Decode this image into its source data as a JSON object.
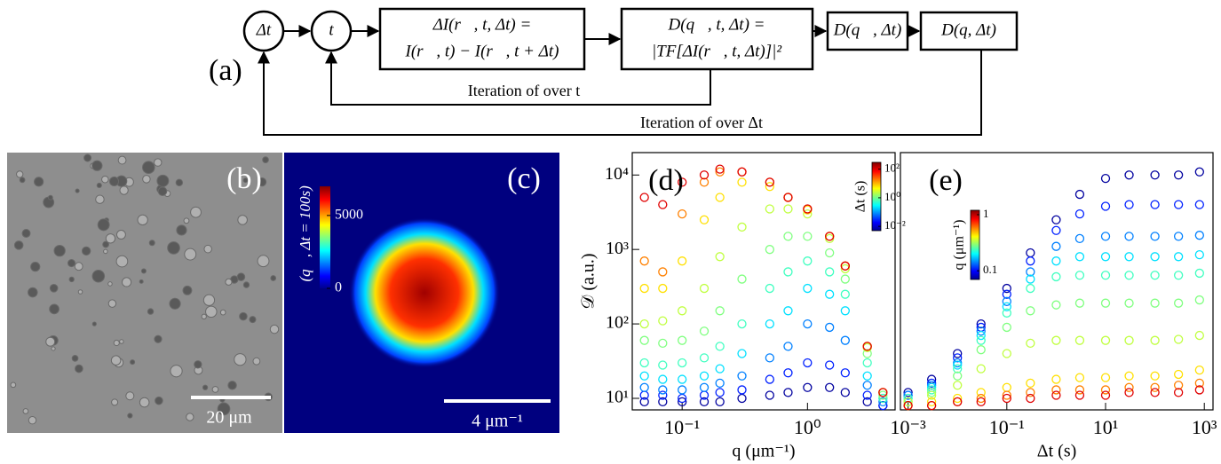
{
  "panel_a": {
    "label": "(a)",
    "nodes": [
      {
        "lines": [
          "Δt"
        ]
      },
      {
        "lines": [
          "t"
        ]
      },
      {
        "lines": [
          "ΔI(r⃗, t, Δt) =",
          "I(r⃗, t) − I(r⃗, t + Δt)"
        ]
      },
      {
        "lines": [
          "D(q⃗, t, Δt) =",
          "|TF[ΔI(r⃗, t, Δt)]|²"
        ]
      },
      {
        "lines": [
          "D(q⃗, Δt)"
        ]
      },
      {
        "lines": [
          "D(q, Δt)"
        ]
      }
    ],
    "loops": [
      "Iteration of over t",
      "Iteration of over Δt"
    ]
  },
  "panel_b": {
    "label": "(b)",
    "scale_bar": "20 μm"
  },
  "panel_c": {
    "label": "(c)",
    "colorbar_label": "𝒟(q⃗, Δt = 100s)",
    "colorbar_lim": [
      0,
      7000
    ],
    "colorbar_ticks": [
      0,
      5000
    ],
    "scale_bar": "4 μm⁻¹"
  },
  "chart_data": [
    {
      "type": "scatter",
      "label": "(d)",
      "xlabel": "q (μm⁻¹)",
      "ylabel": "𝒟 (a.u.)",
      "log_x": true,
      "log_y": true,
      "xlim": [
        0.04,
        5
      ],
      "ylim": [
        7,
        20000
      ],
      "xticks": [
        {
          "value": 0.1,
          "label": "10⁻¹"
        },
        {
          "value": 1,
          "label": "10⁰"
        }
      ],
      "yticks": [
        {
          "value": 10,
          "label": "10¹"
        },
        {
          "value": 100,
          "label": "10²"
        },
        {
          "value": 1000,
          "label": "10³"
        },
        {
          "value": 10000,
          "label": "10⁴"
        }
      ],
      "colorbar": {
        "label": "Δt (s)",
        "lim": [
          0.005,
          300
        ],
        "ticks": [
          {
            "value": 0.01,
            "label": "10⁻²"
          },
          {
            "value": 1,
            "label": "10⁰"
          },
          {
            "value": 100,
            "label": "10²"
          }
        ]
      },
      "x": [
        0.05,
        0.07,
        0.1,
        0.15,
        0.2,
        0.3,
        0.5,
        0.7,
        1,
        1.5,
        2,
        3,
        4
      ],
      "series": [
        {
          "color": "#00009f",
          "values": [
            9,
            9,
            9,
            9,
            9,
            10,
            11,
            12,
            14,
            14,
            12,
            9,
            8
          ]
        },
        {
          "color": "#0020ff",
          "values": [
            11,
            11,
            10,
            11,
            12,
            13,
            18,
            22,
            30,
            28,
            22,
            11,
            8
          ]
        },
        {
          "color": "#0080ff",
          "values": [
            14,
            13,
            13,
            14,
            16,
            20,
            35,
            50,
            100,
            90,
            60,
            15,
            9
          ]
        },
        {
          "color": "#00e0ff",
          "values": [
            20,
            18,
            18,
            20,
            25,
            40,
            100,
            150,
            300,
            250,
            150,
            20,
            10
          ]
        },
        {
          "color": "#40ffc0",
          "values": [
            30,
            28,
            30,
            35,
            50,
            100,
            300,
            500,
            700,
            500,
            250,
            30,
            10
          ]
        },
        {
          "color": "#80ff80",
          "values": [
            60,
            55,
            60,
            80,
            150,
            400,
            1000,
            1500,
            1500,
            900,
            400,
            40,
            11
          ]
        },
        {
          "color": "#c0ff40",
          "values": [
            100,
            110,
            150,
            300,
            800,
            2000,
            3500,
            3500,
            3000,
            1400,
            550,
            48,
            12
          ]
        },
        {
          "color": "#ffe000",
          "values": [
            300,
            300,
            700,
            2500,
            5000,
            8000,
            7000,
            5000,
            3400,
            1500,
            600,
            50,
            12
          ]
        },
        {
          "color": "#ff8000",
          "values": [
            700,
            500,
            3000,
            8000,
            11000,
            11000,
            8000,
            5000,
            3500,
            1500,
            600,
            50,
            12
          ]
        },
        {
          "color": "#e00000",
          "values": [
            5000,
            4000,
            8000,
            10000,
            12000,
            11000,
            8000,
            5000,
            3500,
            1500,
            600,
            50,
            12
          ]
        }
      ]
    },
    {
      "type": "scatter",
      "label": "(e)",
      "xlabel": "Δt (s)",
      "log_x": true,
      "log_y": true,
      "xlim": [
        0.0007,
        1500
      ],
      "ylim": [
        7,
        20000
      ],
      "xticks": [
        {
          "value": 0.001,
          "label": "10⁻³"
        },
        {
          "value": 0.1,
          "label": "10⁻¹"
        },
        {
          "value": 10,
          "label": "10¹"
        },
        {
          "value": 1000,
          "label": "10³"
        }
      ],
      "colorbar": {
        "label": "q (μm⁻¹)",
        "lim": [
          0.07,
          1.2
        ],
        "ticks": [
          0.1,
          1
        ]
      },
      "x": [
        0.001,
        0.003,
        0.01,
        0.03,
        0.1,
        0.3,
        1,
        3,
        10,
        30,
        100,
        300,
        800
      ],
      "series": [
        {
          "color": "#00009f",
          "values": [
            12,
            18,
            40,
            100,
            300,
            900,
            2500,
            5500,
            9000,
            10000,
            10000,
            10000,
            11000
          ]
        },
        {
          "color": "#0020ff",
          "values": [
            11,
            16,
            35,
            90,
            250,
            700,
            1800,
            3000,
            3800,
            4000,
            4000,
            4000,
            4000
          ]
        },
        {
          "color": "#0080ff",
          "values": [
            11,
            15,
            30,
            80,
            200,
            500,
            1100,
            1400,
            1500,
            1500,
            1500,
            1500,
            1550
          ]
        },
        {
          "color": "#00e0ff",
          "values": [
            10,
            14,
            28,
            70,
            170,
            400,
            700,
            800,
            800,
            800,
            800,
            800,
            850
          ]
        },
        {
          "color": "#40ffc0",
          "values": [
            10,
            13,
            25,
            60,
            140,
            300,
            430,
            450,
            450,
            450,
            450,
            450,
            480
          ]
        },
        {
          "color": "#80ff80",
          "values": [
            9,
            12,
            20,
            45,
            90,
            150,
            180,
            190,
            190,
            190,
            190,
            190,
            210
          ]
        },
        {
          "color": "#c0ff40",
          "values": [
            9,
            11,
            15,
            25,
            40,
            55,
            60,
            60,
            60,
            60,
            60,
            62,
            70
          ]
        },
        {
          "color": "#ffe000",
          "values": [
            8,
            9,
            10,
            12,
            14,
            16,
            18,
            19,
            19,
            20,
            20,
            21,
            24
          ]
        },
        {
          "color": "#ff8000",
          "values": [
            8,
            8,
            9,
            10,
            11,
            12,
            13,
            13,
            13,
            14,
            14,
            15,
            16
          ]
        },
        {
          "color": "#e00000",
          "values": [
            8,
            8,
            9,
            9,
            10,
            10,
            11,
            11,
            11,
            12,
            12,
            12,
            13
          ]
        }
      ]
    }
  ]
}
